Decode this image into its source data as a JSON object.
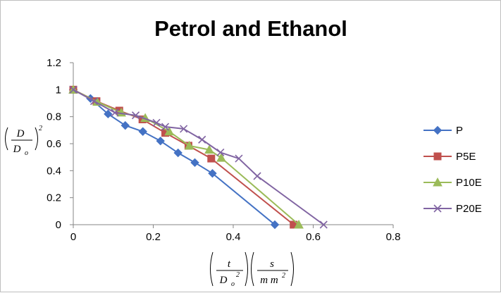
{
  "chart_data": {
    "type": "line",
    "title": "Petrol  and Ethanol",
    "xlim": [
      0,
      0.8
    ],
    "ylim": [
      0,
      1.2
    ],
    "x_ticks": [
      0,
      0.2,
      0.4,
      0.6,
      0.8
    ],
    "y_ticks": [
      0,
      0.2,
      0.4,
      0.6,
      0.8,
      1,
      1.2
    ],
    "grid": false,
    "legend_position": "right",
    "ylabel": {
      "num": "D",
      "den": "D",
      "den_sub": "o",
      "sup": "2"
    },
    "xlabel": {
      "num": "t",
      "den": "D",
      "den_sub": "o",
      "den_sup": "2",
      "unit_num": "s",
      "unit_den": "m m",
      "unit_den_sup": "2"
    },
    "series": [
      {
        "name": "P",
        "color": "#4472C4",
        "marker": "diamond",
        "points": [
          [
            0,
            1
          ],
          [
            0.043,
            0.935
          ],
          [
            0.087,
            0.82
          ],
          [
            0.13,
            0.735
          ],
          [
            0.174,
            0.69
          ],
          [
            0.218,
            0.62
          ],
          [
            0.262,
            0.532
          ],
          [
            0.304,
            0.46
          ],
          [
            0.348,
            0.38
          ],
          [
            0.504,
            0
          ]
        ]
      },
      {
        "name": "P5E",
        "color": "#C0504D",
        "marker": "square",
        "points": [
          [
            0,
            1
          ],
          [
            0.058,
            0.915
          ],
          [
            0.115,
            0.845
          ],
          [
            0.173,
            0.78
          ],
          [
            0.23,
            0.68
          ],
          [
            0.288,
            0.585
          ],
          [
            0.345,
            0.49
          ],
          [
            0.551,
            0
          ]
        ]
      },
      {
        "name": "P10E",
        "color": "#9BBB59",
        "marker": "triangle",
        "points": [
          [
            0,
            1
          ],
          [
            0.06,
            0.91
          ],
          [
            0.12,
            0.83
          ],
          [
            0.18,
            0.79
          ],
          [
            0.24,
            0.69
          ],
          [
            0.29,
            0.585
          ],
          [
            0.34,
            0.555
          ],
          [
            0.37,
            0.495
          ],
          [
            0.564,
            0
          ]
        ]
      },
      {
        "name": "P20E",
        "color": "#8064A2",
        "marker": "x",
        "points": [
          [
            0,
            1
          ],
          [
            0.052,
            0.915
          ],
          [
            0.104,
            0.83
          ],
          [
            0.156,
            0.81
          ],
          [
            0.208,
            0.755
          ],
          [
            0.23,
            0.725
          ],
          [
            0.276,
            0.71
          ],
          [
            0.322,
            0.63
          ],
          [
            0.368,
            0.535
          ],
          [
            0.414,
            0.49
          ],
          [
            0.46,
            0.36
          ],
          [
            0.626,
            0
          ]
        ]
      }
    ]
  }
}
